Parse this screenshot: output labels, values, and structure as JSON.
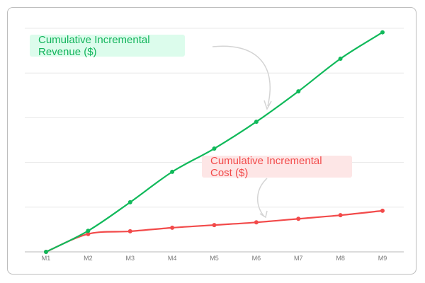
{
  "chart_data": {
    "type": "line",
    "title": "",
    "xlabel": "",
    "ylabel": "",
    "categories": [
      "M1",
      "M2",
      "M3",
      "M4",
      "M5",
      "M6",
      "M7",
      "M8",
      "M9"
    ],
    "ylim": [
      0,
      5
    ],
    "grid": true,
    "series": [
      {
        "name": "Cumulative Incremental Revenue ($)",
        "color": "#10b95a",
        "values": [
          0,
          0.47,
          1.11,
          1.79,
          2.31,
          2.91,
          3.59,
          4.32,
          4.91
        ]
      },
      {
        "name": "Cumulative Incremental Cost ($)",
        "color": "#f24a4a",
        "values": [
          0,
          0.4,
          0.46,
          0.54,
          0.6,
          0.66,
          0.74,
          0.82,
          0.92
        ]
      }
    ],
    "annotations": {
      "revenue_label": "Cumulative Incremental Revenue ($)",
      "cost_label": "Cumulative Incremental Cost ($)"
    }
  }
}
